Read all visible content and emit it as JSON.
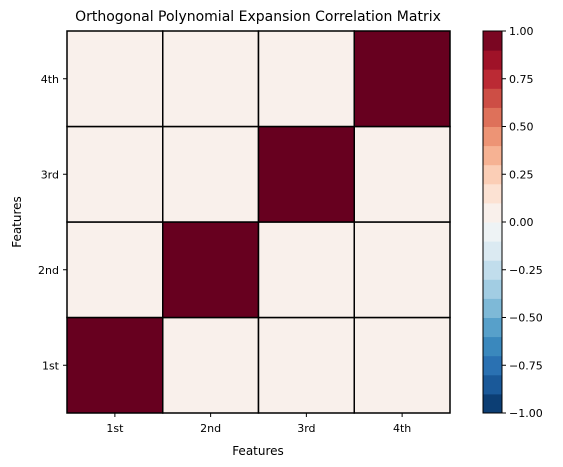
{
  "chart_data": {
    "type": "heatmap",
    "title": "Orthogonal Polynomial Expansion Correlation Matrix",
    "xlabel": "Features",
    "ylabel": "Features",
    "x_categories": [
      "1st",
      "2nd",
      "3rd",
      "4th"
    ],
    "y_categories": [
      "1st",
      "2nd",
      "3rd",
      "4th"
    ],
    "y_order": "bottom-to-top",
    "matrix": [
      [
        1.0,
        0.0,
        0.0,
        0.0
      ],
      [
        0.0,
        1.0,
        0.0,
        0.0
      ],
      [
        0.0,
        0.0,
        1.0,
        0.0
      ],
      [
        0.0,
        0.0,
        0.0,
        1.0
      ]
    ],
    "colorbar": {
      "range": [
        -1.0,
        1.0
      ],
      "ticks": [
        -1.0,
        -0.75,
        -0.5,
        -0.25,
        0.0,
        0.25,
        0.5,
        0.75,
        1.0
      ],
      "tick_labels": [
        "−1.00",
        "−0.75",
        "−0.50",
        "−0.25",
        "0.00",
        "0.25",
        "0.50",
        "0.75",
        "1.00"
      ],
      "colormap": "RdBu_r",
      "levels": 20
    },
    "cell_edge_color": "#000000",
    "grid": false
  }
}
